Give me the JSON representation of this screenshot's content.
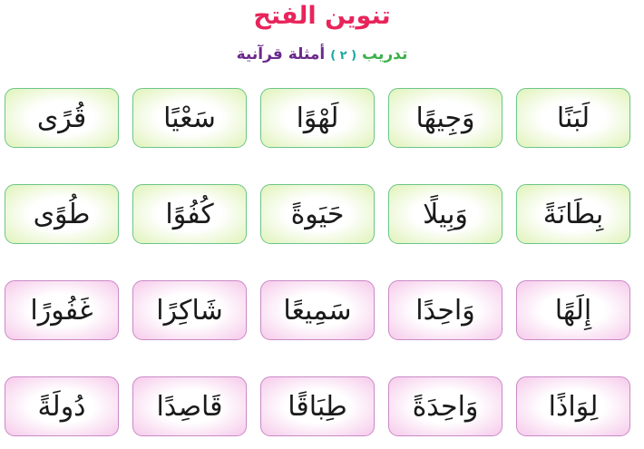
{
  "title": "تنوين الفتح",
  "subtitle": {
    "label": "تدريب",
    "number": "( ٢ )",
    "text": "أمثلة قرآنية"
  },
  "colors": {
    "title": "#e8245a",
    "green_card": "#dff3b8",
    "pink_card": "#f6c9ea"
  },
  "rows": [
    {
      "theme": "green",
      "words": [
        "لَبَنًا",
        "وَجِيهًا",
        "لَهْوًا",
        "سَعْيًا",
        "قُرًى"
      ]
    },
    {
      "theme": "green",
      "words": [
        "بِطَانَةً",
        "وَبِيلًا",
        "حَيَوةً",
        "كُفُوًا",
        "طُوًى"
      ]
    },
    {
      "theme": "pink",
      "words": [
        "إِلَهًا",
        "وَاحِدًا",
        "سَمِيعًا",
        "شَاكِرًا",
        "غَفُورًا"
      ]
    },
    {
      "theme": "pink",
      "words": [
        "لِوَاذًا",
        "وَاحِدَةً",
        "طِبَاقًا",
        "قَاصِدًا",
        "دُولَةً"
      ]
    }
  ]
}
